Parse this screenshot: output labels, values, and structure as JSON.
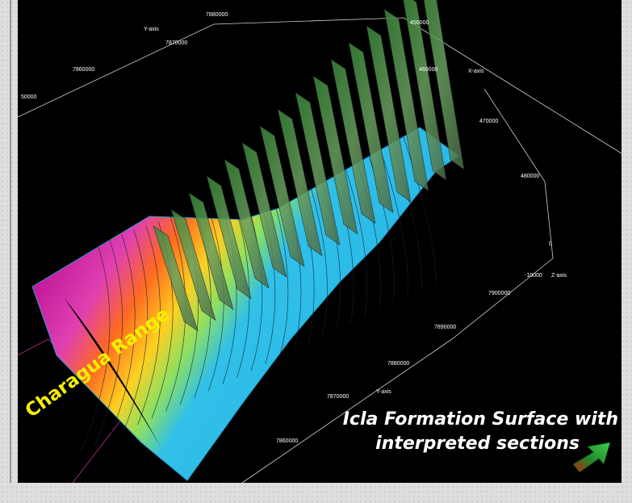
{
  "axis_labels": [
    "7880000",
    "Y-axis",
    "7870000",
    "7860000",
    "50000",
    "450000",
    "460000",
    "X-axis",
    "470000",
    "480000",
    "0",
    "-10000",
    "Z-axis",
    "7900000",
    "7890000",
    "7880000",
    "Y-axis",
    "7870000",
    "7860000"
  ],
  "range_label": "Charagua Range",
  "caption": [
    "Icla Formation Surface with",
    "interpreted sections"
  ]
}
